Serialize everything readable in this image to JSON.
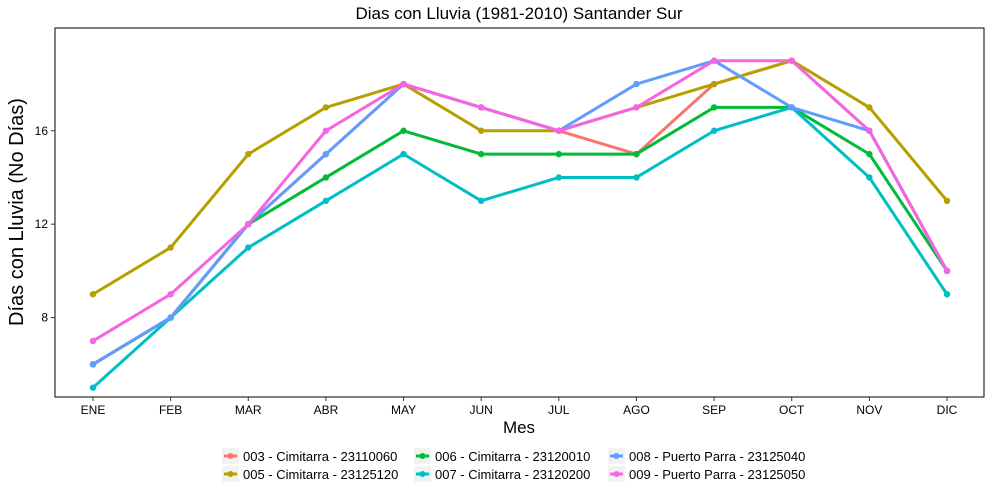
{
  "chart_data": {
    "type": "line",
    "title": "Dias con Lluvia (1981-2010)  Santander Sur",
    "xlabel": "Mes",
    "ylabel": "Días con Lluvia (No Días)",
    "categories": [
      "ENE",
      "FEB",
      "MAR",
      "ABR",
      "MAY",
      "JUN",
      "JUL",
      "AGO",
      "SEP",
      "OCT",
      "NOV",
      "DIC"
    ],
    "ylim": [
      4.6,
      20.4
    ],
    "yticks": [
      8,
      12,
      16
    ],
    "grid": false,
    "legend_position": "bottom",
    "series": [
      {
        "name": "003 - Cimitarra - 23110060",
        "color": "#F8766D",
        "values": [
          6,
          8,
          12,
          15,
          18,
          17,
          16,
          15,
          18,
          19,
          16,
          10
        ]
      },
      {
        "name": "005 - Cimitarra - 23125120",
        "color": "#B79F00",
        "values": [
          9,
          11,
          15,
          17,
          18,
          16,
          16,
          17,
          18,
          19,
          17,
          13
        ]
      },
      {
        "name": "006 - Cimitarra - 23120010",
        "color": "#00BA38",
        "values": [
          6,
          8,
          12,
          14,
          16,
          15,
          15,
          15,
          17,
          17,
          15,
          10
        ]
      },
      {
        "name": "007 - Cimitarra - 23120200",
        "color": "#00BFC4",
        "values": [
          5,
          8,
          11,
          13,
          15,
          13,
          14,
          14,
          16,
          17,
          14,
          9
        ]
      },
      {
        "name": "008 - Puerto Parra - 23125040",
        "color": "#619CFF",
        "values": [
          6,
          8,
          12,
          15,
          18,
          17,
          16,
          18,
          19,
          17,
          16,
          10
        ]
      },
      {
        "name": "009 - Puerto Parra - 23125050",
        "color": "#F564E3",
        "values": [
          7,
          9,
          12,
          16,
          18,
          17,
          16,
          17,
          19,
          19,
          16,
          10
        ]
      }
    ]
  }
}
